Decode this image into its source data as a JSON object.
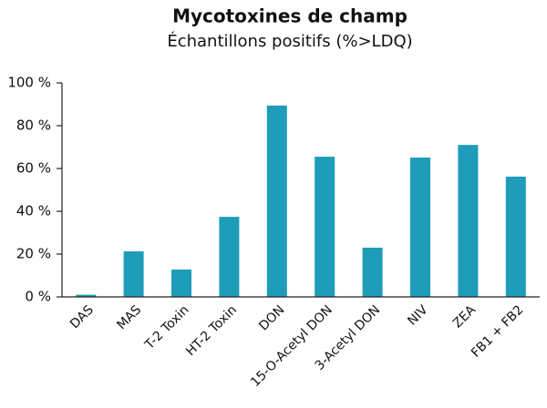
{
  "chart_data": {
    "type": "bar",
    "title": "Mycotoxines de champ",
    "subtitle": "Échantillons positifs (%>LDQ)",
    "categories": [
      "DAS",
      "MAS",
      "T-2 Toxin",
      "HT-2 Toxin",
      "DON",
      "15-O-Acetyl DON",
      "3-Acetyl DON",
      "NIV",
      "ZEA",
      "FB1 + FB2"
    ],
    "values": [
      1,
      21.3,
      12.8,
      37.4,
      89.4,
      65.5,
      23,
      65.1,
      71,
      56.2
    ],
    "color": "#1e9cb9",
    "ylim": [
      0,
      100
    ],
    "yticks": [
      {
        "value": 0,
        "label": "0 %"
      },
      {
        "value": 20,
        "label": "20 %"
      },
      {
        "value": 40,
        "label": "40 %"
      },
      {
        "value": 60,
        "label": "60 %"
      },
      {
        "value": 80,
        "label": "80 %"
      },
      {
        "value": 100,
        "label": "100 %"
      }
    ],
    "grid": false
  }
}
